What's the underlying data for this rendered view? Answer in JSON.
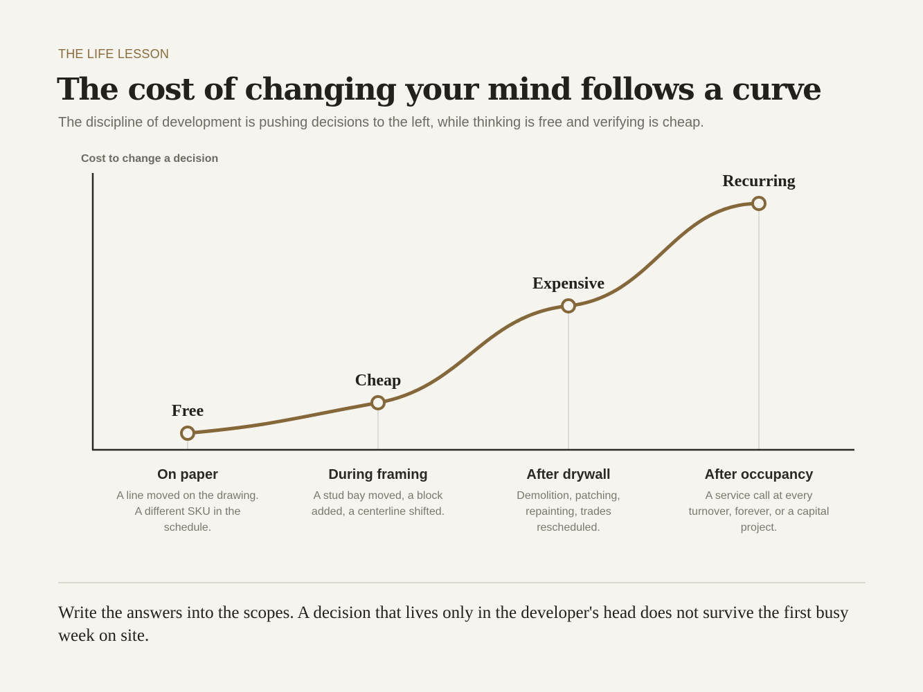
{
  "header": {
    "eyebrow": "THE LIFE LESSON",
    "title": "The cost of changing your mind follows a curve",
    "subtitle": "The discipline of development is pushing decisions to the left, while thinking is free and verifying is cheap."
  },
  "chart_data": {
    "type": "line",
    "ylabel": "Cost to change a decision",
    "xlabel": "",
    "categories": [
      "On paper",
      "During framing",
      "After drywall",
      "After occupancy"
    ],
    "point_labels": [
      "Free",
      "Cheap",
      "Expensive",
      "Recurring"
    ],
    "descriptions": [
      [
        "A line moved on the drawing.",
        "A different SKU in the",
        "schedule."
      ],
      [
        "A stud bay moved, a block",
        "added, a centerline shifted."
      ],
      [
        "Demolition, patching,",
        "repainting, trades",
        "rescheduled."
      ],
      [
        "A service call at every",
        "turnover, forever, or a capital",
        "project."
      ]
    ],
    "values": [
      0.06,
      0.17,
      0.52,
      0.89
    ],
    "ylim": [
      0,
      1
    ],
    "grid": false,
    "colors": {
      "line": "#85683a",
      "axis": "#2b2924",
      "drop_line": "#d4d1ca",
      "marker_fill": "#f6f4ef"
    }
  },
  "footer": {
    "text": "Write the answers into the scopes. A decision that lives only in the developer's head does not survive the first busy week on site."
  }
}
